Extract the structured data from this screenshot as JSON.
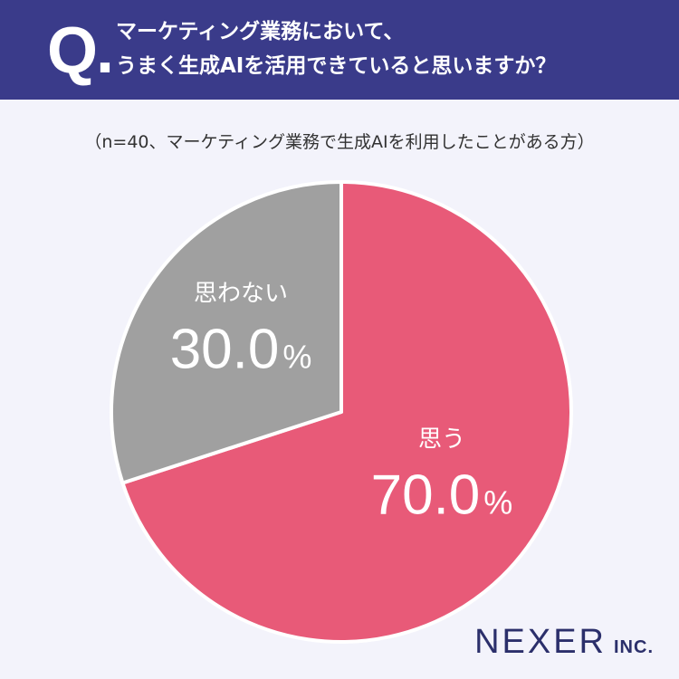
{
  "header": {
    "q_mark": "Q.",
    "question_line1": "マーケティング業務において、",
    "question_line2": "うまく生成AIを活用できていると思いますか？"
  },
  "subtitle": "（n=40、マーケティング業務で生成AIを利用したことがある方）",
  "chart_data": {
    "type": "pie",
    "title": "マーケティング業務において、うまく生成AIを活用できていると思いますか？",
    "subtitle": "（n=40、マーケティング業務で生成AIを利用したことがある方）",
    "categories": [
      "思う",
      "思わない"
    ],
    "values": [
      70.0,
      30.0
    ],
    "value_labels": [
      "70.0",
      "30.0"
    ],
    "unit": "%",
    "colors": [
      "#e85a78",
      "#a0a0a0"
    ],
    "start": "12 o'clock, clockwise"
  },
  "colors": {
    "header_bg": "#3a3b8a",
    "background": "#f3f3fb",
    "text_light": "#ffffff",
    "logo": "#2b2f6b"
  },
  "logo": {
    "main": "NEXER",
    "sub": "INC."
  }
}
